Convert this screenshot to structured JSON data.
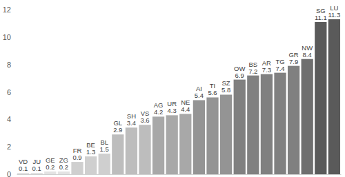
{
  "chart_data": {
    "type": "bar",
    "categories": [
      "VD",
      "JU",
      "GE",
      "ZG",
      "FR",
      "BE",
      "BL",
      "GL",
      "SH",
      "VS",
      "AG",
      "UR",
      "NE",
      "AI",
      "TI",
      "SZ",
      "OW",
      "BS",
      "AR",
      "TG",
      "GR",
      "NW",
      "SG",
      "LU"
    ],
    "values": [
      0.1,
      0.1,
      0.2,
      0.2,
      0.9,
      1.3,
      1.5,
      2.9,
      3.4,
      3.6,
      4.2,
      4.3,
      4.4,
      5.4,
      5.6,
      5.8,
      6.9,
      7.2,
      7.3,
      7.4,
      7.9,
      8.4,
      11.1,
      11.3
    ],
    "colors": [
      "#e3e3e3",
      "#e3e3e3",
      "#e3e3e3",
      "#e3e3e3",
      "#cfcfcf",
      "#cfcfcf",
      "#cfcfcf",
      "#bdbdbd",
      "#bdbdbd",
      "#bdbdbd",
      "#a8a8a8",
      "#a8a8a8",
      "#a8a8a8",
      "#949494",
      "#949494",
      "#949494",
      "#808080",
      "#808080",
      "#808080",
      "#808080",
      "#808080",
      "#6e6e6e",
      "#5a5a5a",
      "#5a5a5a"
    ],
    "ylim": [
      0,
      12
    ],
    "yticks": [
      0,
      2,
      4,
      6,
      8,
      10,
      12
    ],
    "grid": false,
    "data_labels": true,
    "tick_labels": "y"
  }
}
